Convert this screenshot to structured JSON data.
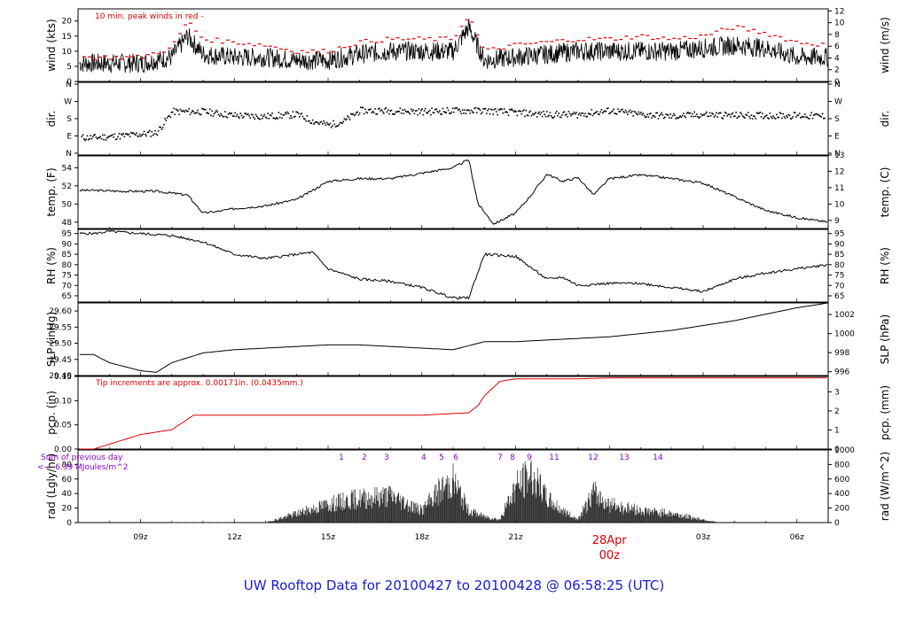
{
  "figure": {
    "title": "UW Rooftop Data for 20100427  to  20100428 @ 06:58:25  (UTC)",
    "x_ticks": [
      "09z",
      "12z",
      "15z",
      "18z",
      "21z",
      "00z",
      "03z",
      "06z"
    ],
    "date_label": "28Apr",
    "date_color": "#e00000",
    "title_color": "#1a1ad6",
    "label_color": "#8800cc"
  },
  "chart_data": [
    {
      "type": "line",
      "panel": "wind",
      "ylabel_left": "wind (kts)",
      "ylabel_right": "wind (m/s)",
      "annotation": "10 min. peak winds in red -",
      "ylim": [
        0,
        24
      ],
      "yticks_left": [
        0,
        5,
        10,
        15,
        20
      ],
      "yticks_right": [
        0,
        2,
        4,
        6,
        8,
        10,
        12
      ],
      "x": [
        7.5,
        9,
        10,
        10.5,
        11,
        12,
        13,
        14,
        15,
        16,
        17,
        18,
        19,
        19.5,
        20,
        21,
        22,
        23,
        24,
        25,
        26,
        27,
        28,
        29,
        30,
        31
      ],
      "series": [
        {
          "values": [
            6,
            6,
            8,
            15,
            9,
            8,
            8,
            7,
            7,
            9,
            10,
            10,
            10,
            18,
            7,
            8,
            9,
            10,
            10,
            10,
            10,
            11,
            12,
            11,
            8,
            8
          ]
        },
        {
          "values": [
            8,
            8,
            11,
            20,
            14,
            13,
            12,
            10,
            10,
            13,
            14,
            14,
            14,
            22,
            10,
            12,
            13,
            14,
            14,
            15,
            14,
            15,
            18,
            16,
            13,
            12
          ],
          "color": "#e00000"
        }
      ]
    },
    {
      "type": "scatter",
      "panel": "dir",
      "ylabel_left": "dir.",
      "ylabel_right": "dir.",
      "yticks": [
        "N",
        "E",
        "S",
        "W",
        "N"
      ],
      "x": [
        7.5,
        8.5,
        9.5,
        10,
        11,
        12,
        13,
        14,
        14.5,
        15,
        15.5,
        16,
        17,
        18,
        19,
        20,
        21,
        22,
        23,
        24,
        25,
        26,
        27,
        28,
        29,
        30,
        31
      ],
      "values": [
        85,
        95,
        110,
        220,
        220,
        200,
        195,
        205,
        170,
        150,
        170,
        225,
        225,
        220,
        225,
        225,
        215,
        205,
        205,
        225,
        205,
        195,
        205,
        200,
        200,
        200,
        195
      ]
    },
    {
      "type": "line",
      "panel": "temp",
      "ylabel_left": "temp. (F)",
      "ylabel_right": "temp. (C)",
      "ylim": [
        47.3,
        55.3
      ],
      "yticks_left": [
        48,
        50,
        52,
        54
      ],
      "yticks_right": [
        9,
        10,
        11,
        12,
        13
      ],
      "x": [
        7.5,
        8.5,
        9.5,
        10.5,
        11,
        11.5,
        12,
        13,
        14,
        14.5,
        15,
        16,
        17,
        18,
        19,
        19.5,
        19.8,
        20.3,
        21,
        21.5,
        22,
        22.5,
        23,
        23.5,
        24,
        25,
        26,
        27,
        28,
        29,
        30,
        31
      ],
      "values": [
        51.5,
        51.4,
        51.4,
        51.0,
        49.0,
        49.2,
        49.5,
        49.8,
        50.5,
        51.5,
        52.5,
        52.8,
        52.8,
        53.4,
        54.0,
        54.9,
        50.0,
        47.8,
        49.0,
        51.0,
        53.3,
        52.5,
        52.9,
        51.0,
        52.8,
        53.2,
        52.8,
        52.3,
        50.8,
        49.3,
        48.5,
        48.0
      ]
    },
    {
      "type": "line",
      "panel": "rh",
      "ylabel_left": "RH (%)",
      "ylabel_right": "RH (%)",
      "ylim": [
        62,
        97
      ],
      "yticks": [
        65,
        70,
        75,
        80,
        85,
        90,
        95
      ],
      "x": [
        7.5,
        8,
        9,
        10,
        11,
        12,
        13,
        14,
        14.5,
        15,
        16,
        17,
        18,
        19,
        19.5,
        20,
        21,
        22,
        22.5,
        23,
        24,
        25,
        26,
        27,
        28,
        29,
        30,
        31
      ],
      "values": [
        95,
        96,
        95,
        94,
        91,
        85,
        83,
        85,
        86,
        78,
        73,
        72,
        69,
        64,
        64,
        85,
        84,
        73,
        74,
        70,
        71,
        71,
        69,
        67,
        73,
        76,
        78,
        80
      ]
    },
    {
      "type": "line",
      "panel": "slp",
      "ylabel_left": "SLP (inHg)",
      "ylabel_right": "SLP (hPa)",
      "ylim": [
        29.4,
        29.625
      ],
      "yticks_left": [
        "29.40",
        "29.45",
        "29.50",
        "29.55",
        "29.60"
      ],
      "yticks_right": [
        996,
        998,
        1000,
        1002
      ],
      "x": [
        7.5,
        8,
        9,
        9.5,
        10,
        11,
        12,
        13,
        14,
        15,
        16,
        17,
        18,
        19,
        20,
        21,
        22,
        23,
        24,
        25,
        26,
        27,
        28,
        29,
        30,
        31
      ],
      "values": [
        29.465,
        29.44,
        29.415,
        29.41,
        29.44,
        29.47,
        29.48,
        29.485,
        29.49,
        29.495,
        29.495,
        29.49,
        29.485,
        29.48,
        29.505,
        29.505,
        29.51,
        29.515,
        29.52,
        29.53,
        29.54,
        29.555,
        29.57,
        29.59,
        29.61,
        29.625
      ]
    },
    {
      "type": "line",
      "panel": "pcp",
      "ylabel_left": "pcp. (in)",
      "ylabel_right": "pcp. (mm)",
      "annotation": "Tip increments are approx. 0.00171in. (0.0435mm.)",
      "ylim": [
        0,
        0.15
      ],
      "yticks_left": [
        "0.00",
        "0.05",
        "0.10",
        "0.15"
      ],
      "yticks_right": [
        0,
        1,
        2,
        3
      ],
      "x": [
        7.5,
        9,
        10,
        10.7,
        18,
        19.5,
        19.8,
        20,
        20.5,
        21,
        22,
        23,
        24,
        27,
        31
      ],
      "values": [
        0.0,
        0.03,
        0.04,
        0.07,
        0.07,
        0.075,
        0.09,
        0.11,
        0.14,
        0.145,
        0.145,
        0.145,
        0.147,
        0.147,
        0.147
      ],
      "color": "#e00000"
    },
    {
      "type": "area",
      "panel": "rad",
      "ylabel_left": "rad (Lgly/hr)",
      "ylabel_right": "rad (W/m^2)",
      "annotation_lines": [
        "Sum of previous day",
        "<--- 6.39 MJoules/m^2"
      ],
      "sun_marks": [
        "1",
        "2",
        "3",
        "4",
        "5",
        "6",
        "7",
        "8",
        "9",
        "11",
        "12",
        "13",
        "14"
      ],
      "ylim": [
        0,
        100
      ],
      "yticks_left": [
        0,
        20,
        40,
        60,
        80
      ],
      "yticks_right": [
        0,
        200,
        400,
        600,
        800,
        1000
      ],
      "x": [
        7.5,
        13,
        14,
        15,
        16,
        17,
        18,
        18.5,
        19,
        19.5,
        20,
        20.5,
        21,
        21.5,
        22,
        22.5,
        23,
        23.5,
        24,
        25,
        26,
        27,
        27.5,
        31
      ],
      "values": [
        0,
        0,
        15,
        30,
        40,
        45,
        20,
        50,
        70,
        20,
        10,
        5,
        60,
        80,
        40,
        20,
        5,
        50,
        30,
        20,
        15,
        5,
        0,
        0
      ]
    }
  ]
}
